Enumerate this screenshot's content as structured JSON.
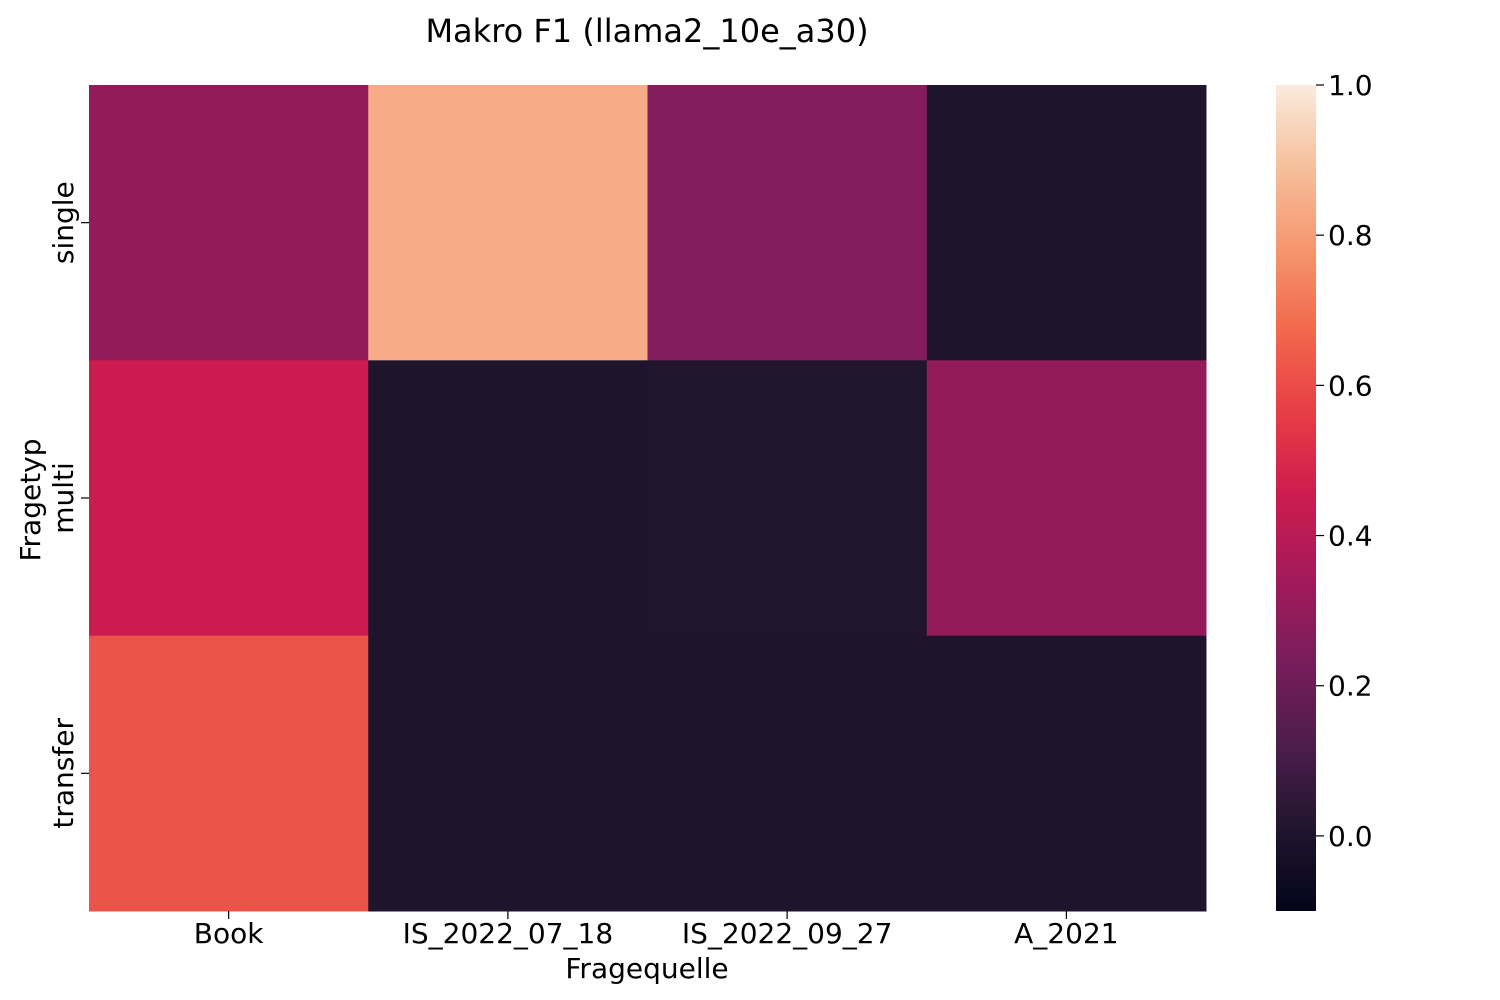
{
  "chart_data": {
    "type": "heatmap",
    "title": "Makro F1 (llama2_10e_a30)",
    "xlabel": "Fragequelle",
    "ylabel": "Fragetyp",
    "x_categories": [
      "Book",
      "IS_2022_07_18",
      "IS_2022_09_27",
      "A_2021"
    ],
    "y_categories": [
      "single",
      "multi",
      "transfer"
    ],
    "values": [
      [
        0.3,
        0.84,
        0.26,
        0.0
      ],
      [
        0.45,
        0.0,
        0.01,
        0.3
      ],
      [
        0.62,
        0.0,
        0.0,
        0.0
      ]
    ],
    "colorbar": {
      "range": [
        -0.1,
        1.0
      ],
      "ticks": [
        1.0,
        0.8,
        0.6,
        0.4,
        0.2,
        0.0
      ],
      "tick_labels": [
        "1.0",
        "0.8",
        "0.6",
        "0.4",
        "0.2",
        "0.0"
      ],
      "colormap": "rocket"
    }
  }
}
